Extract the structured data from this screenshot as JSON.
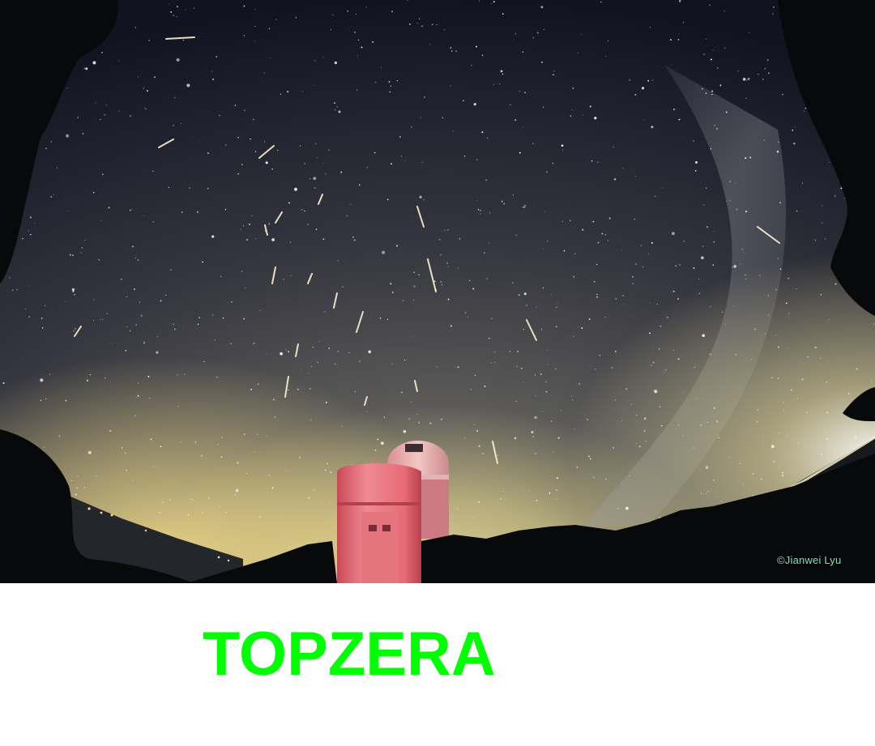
{
  "photo": {
    "subject": "meteor-shower-over-observatory",
    "credit": "©Jianwei Lyu"
  },
  "caption": {
    "text": "TOPZERA",
    "color": "#00ff00"
  },
  "colors": {
    "sky_top": "#12141f",
    "sky_mid": "#3a3b46",
    "horizon_glow": "#e8d38a",
    "dome_lit": "#e8a0a6",
    "tower_lit": "#e96d78",
    "foliage": "#07090a"
  }
}
